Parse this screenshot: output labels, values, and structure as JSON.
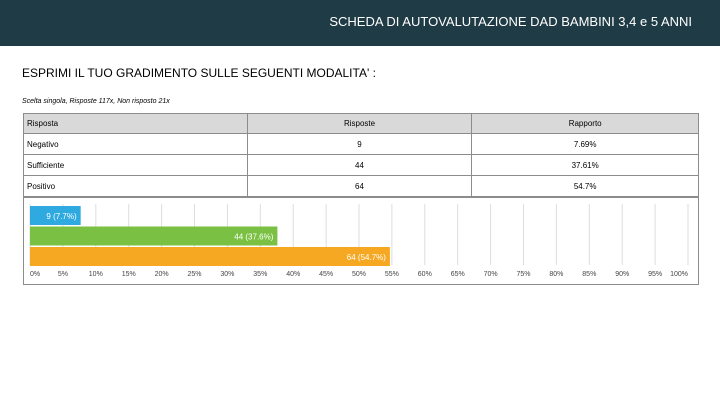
{
  "header": {
    "title": "SCHEDA DI AUTOVALUTAZIONE DAD BAMBINI 3,4 e 5 ANNI"
  },
  "question": "ESPRIMI IL TUO GRADIMENTO SULLE SEGUENTI MODALITA' :",
  "note": "Scelta singola, Risposte 117x, Non risposto 21x",
  "table": {
    "headers": [
      "Risposta",
      "Risposte",
      "Rapporto"
    ],
    "rows": [
      {
        "label": "Negativo",
        "count": "9",
        "ratio": "7.69%"
      },
      {
        "label": "Sufficiente",
        "count": "44",
        "ratio": "37.61%"
      },
      {
        "label": "Positivo",
        "count": "64",
        "ratio": "54.7%"
      }
    ]
  },
  "chart_data": {
    "type": "bar",
    "orientation": "horizontal",
    "categories": [
      "Negativo",
      "Sufficiente",
      "Positivo"
    ],
    "values": [
      7.7,
      37.6,
      54.7
    ],
    "labels": [
      "9 (7.7%)",
      "44 (37.6%)",
      "64 (54.7%)"
    ],
    "colors": [
      "#2eaae1",
      "#7ac143",
      "#f7a823"
    ],
    "xlim": [
      0,
      100
    ],
    "xticks": [
      "0%",
      "5%",
      "10%",
      "15%",
      "20%",
      "25%",
      "30%",
      "35%",
      "40%",
      "45%",
      "50%",
      "55%",
      "60%",
      "65%",
      "70%",
      "75%",
      "80%",
      "85%",
      "90%",
      "95%",
      "100%"
    ],
    "grid": true
  }
}
